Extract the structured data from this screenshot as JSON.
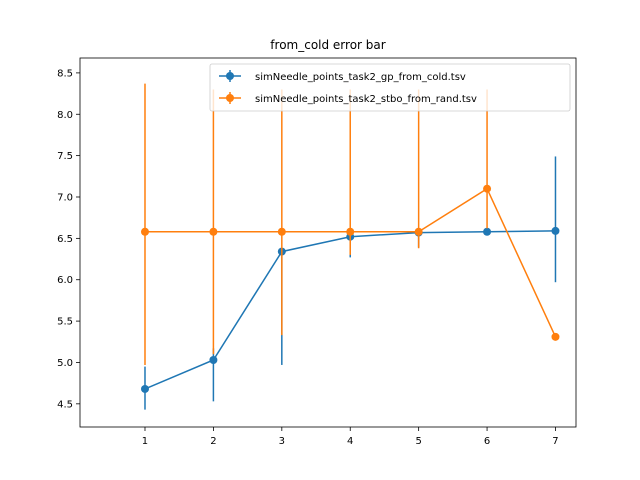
{
  "chart_data": {
    "type": "line",
    "title": "from_cold error bar",
    "xlabel": "",
    "ylabel": "",
    "xlim": [
      0.05,
      7.3
    ],
    "ylim": [
      4.22,
      8.68
    ],
    "x_ticks": [
      1,
      2,
      3,
      4,
      5,
      6,
      7
    ],
    "y_ticks": [
      4.5,
      5.0,
      5.5,
      6.0,
      6.5,
      7.0,
      7.5,
      8.0,
      8.5
    ],
    "y_tick_labels": [
      "4.5",
      "5.0",
      "5.5",
      "6.0",
      "6.5",
      "7.0",
      "7.5",
      "8.0",
      "8.5"
    ],
    "grid": false,
    "legend_position": "top-right",
    "series": [
      {
        "name": "simNeedle_points_task2_gp_from_cold.tsv",
        "color": "#1f77b4",
        "x": [
          1,
          2,
          3,
          4,
          5,
          6,
          7
        ],
        "y": [
          4.68,
          5.03,
          6.34,
          6.52,
          6.57,
          6.58,
          6.59
        ],
        "err_low": [
          4.43,
          4.53,
          4.97,
          6.27,
          6.39,
          6.57,
          5.97
        ],
        "err_high": [
          4.95,
          5.17,
          6.36,
          6.54,
          6.58,
          6.6,
          7.49
        ]
      },
      {
        "name": "simNeedle_points_task2_stbo_from_rand.tsv",
        "color": "#ff7f0e",
        "x": [
          1,
          2,
          3,
          4,
          5,
          6,
          7
        ],
        "y": [
          6.58,
          6.58,
          6.58,
          6.58,
          6.58,
          7.1,
          5.31
        ],
        "err_low": [
          4.97,
          5.1,
          5.33,
          6.3,
          6.38,
          6.62,
          5.31
        ],
        "err_high": [
          8.37,
          8.3,
          8.3,
          8.3,
          8.3,
          8.3,
          5.31
        ]
      }
    ]
  }
}
